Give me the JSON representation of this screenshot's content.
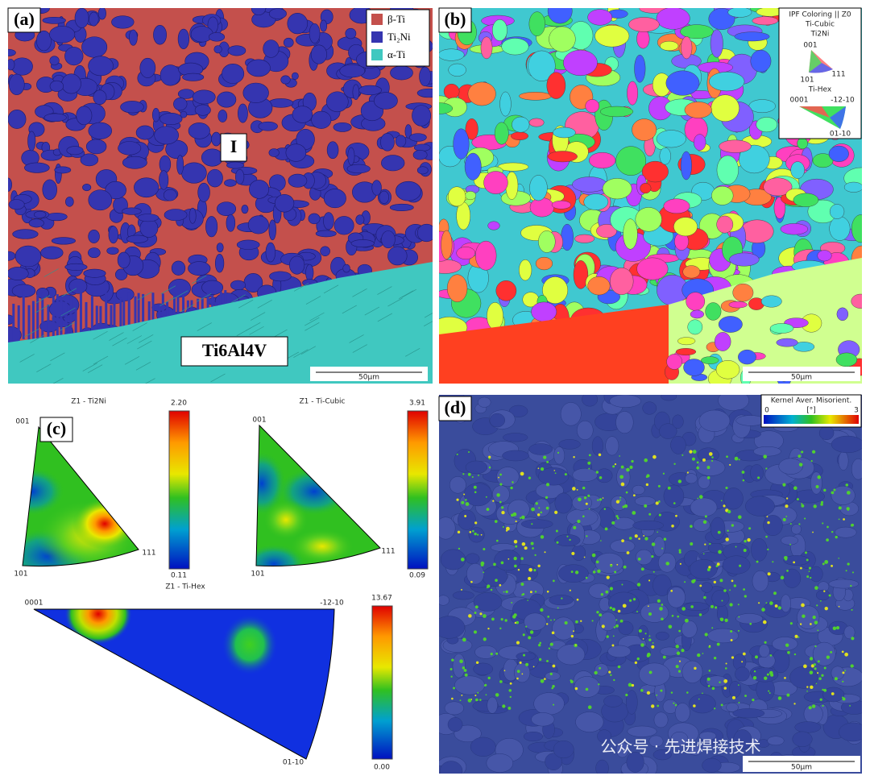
{
  "panel_a": {
    "label": "(a)",
    "legend": [
      "β-Ti",
      "Ti₂Ni",
      "α-Ti"
    ],
    "annotations": [
      "I",
      "Ti6Al4V"
    ],
    "scale_bar": "50μm"
  },
  "panel_b": {
    "label": "(b)",
    "ipf_legend": {
      "title": "IPF Coloring || Z0",
      "phases": [
        {
          "name": "Ti-Cubic",
          "sub": "Ti2Ni",
          "corners": [
            "001",
            "101",
            "111"
          ]
        },
        {
          "name": "Ti-Hex",
          "corners": [
            "0001",
            "-12-10",
            "01-10"
          ]
        }
      ]
    },
    "scale_bar": "50μm"
  },
  "panel_c": {
    "label": "(c)",
    "plots": [
      {
        "title": "Z1 - Ti2Ni",
        "corners": [
          "001",
          "101",
          "111"
        ],
        "max": "2.20",
        "min": "0.11"
      },
      {
        "title": "Z1 - Ti-Cubic",
        "corners": [
          "001",
          "101",
          "111"
        ],
        "max": "3.91",
        "min": "0.09"
      },
      {
        "title": "Z1 - Ti-Hex",
        "corners": [
          "0001",
          "-12-10",
          "01-10"
        ],
        "max": "13.67",
        "min": "0.00"
      }
    ]
  },
  "panel_d": {
    "label": "(d)",
    "legend": {
      "title": "Kernel Aver. Misorient.",
      "min": "0",
      "unit": "[°]",
      "max": "3"
    },
    "scale_bar": "50μm"
  },
  "watermark": "公众号 · 先进焊接技术"
}
